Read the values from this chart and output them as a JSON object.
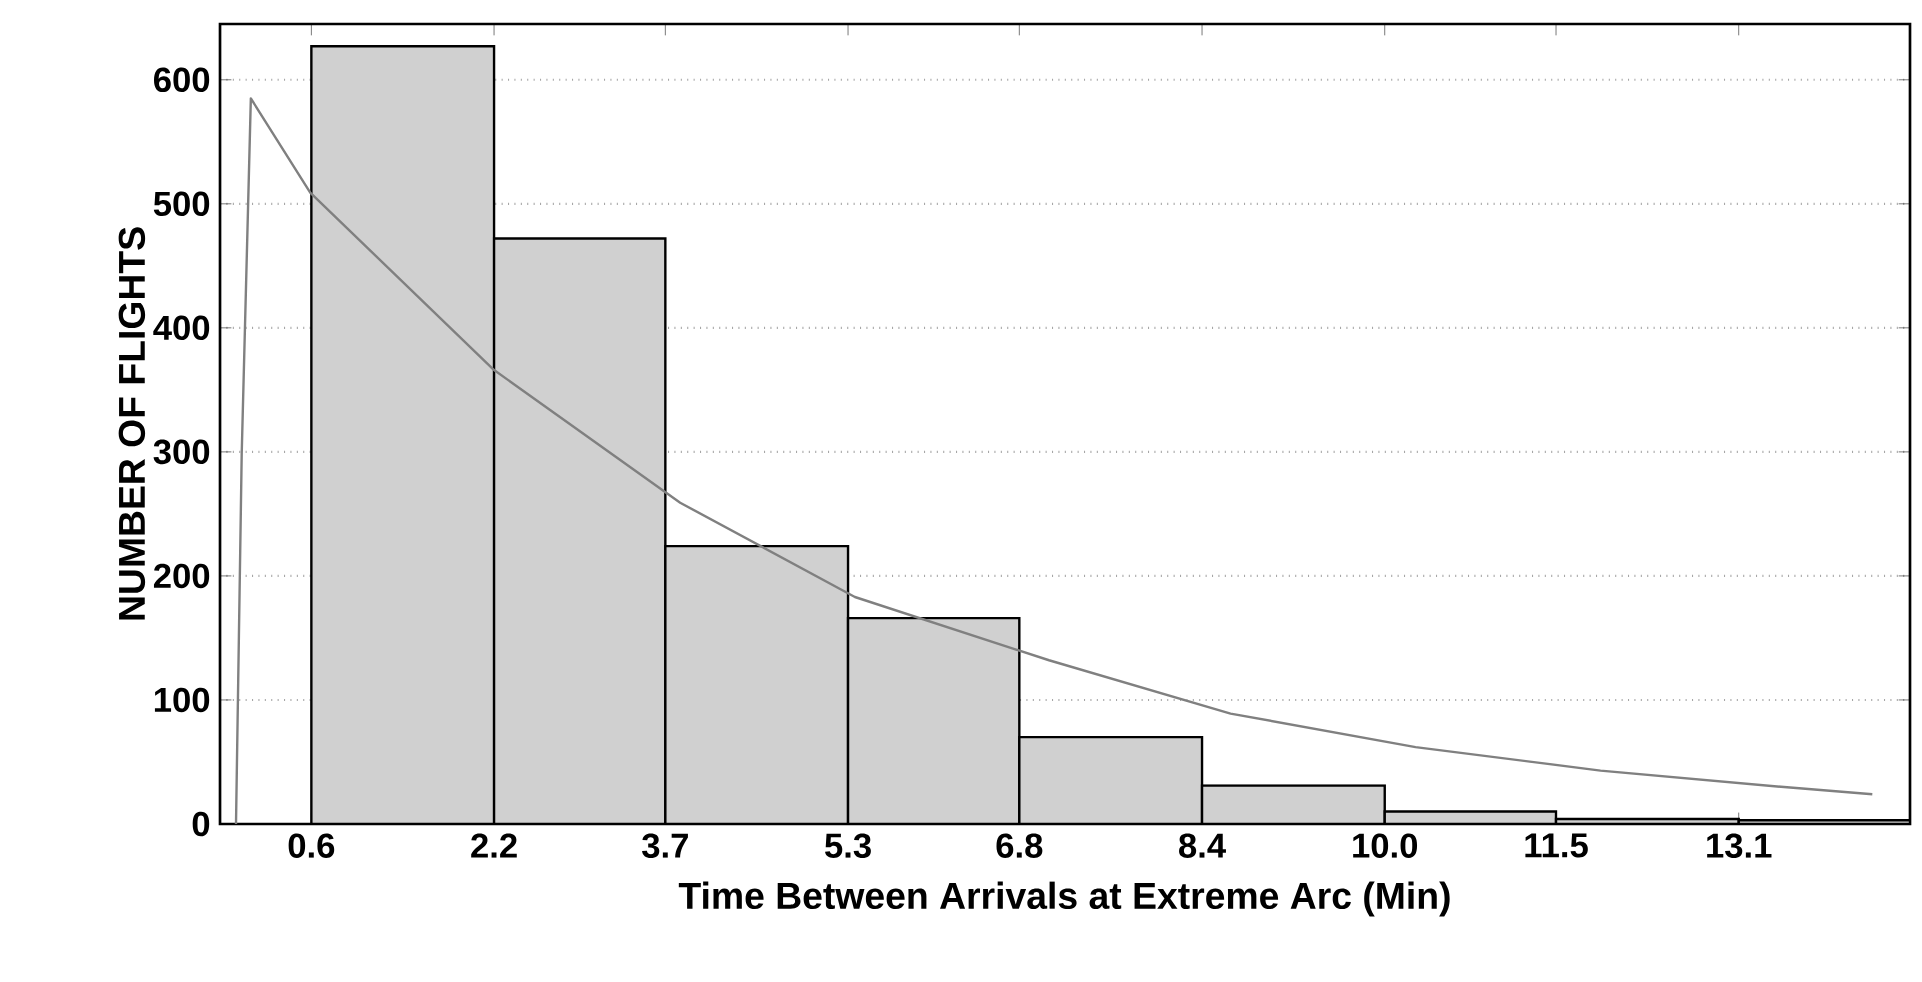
{
  "chart_data": {
    "type": "histogram",
    "xlabel": "Time Between Arrivals at Extreme Arc (Min)",
    "ylabel": "NUMBER OF FLIGHTS",
    "bins": [
      0.6,
      2.2,
      3.7,
      5.3,
      6.8,
      8.4,
      10.0,
      11.5,
      13.1,
      14.6
    ],
    "values": [
      627,
      472,
      224,
      166,
      70,
      31,
      10,
      4,
      3
    ],
    "color": "#d0d0d0",
    "series": [
      {
        "type": "line",
        "color": "#808080",
        "x": [
          -0.06,
          -0.01,
          0.07,
          0.59,
          2.2,
          3.83,
          5.36,
          7.06,
          8.65,
          10.27,
          11.89,
          13.47,
          14.27
        ],
        "values": [
          0,
          298,
          585,
          509,
          366,
          259,
          183,
          132,
          89,
          62,
          43,
          30,
          24
        ]
      }
    ],
    "xlim": [
      -0.2,
      14.6
    ],
    "ylim": [
      0,
      645
    ],
    "xticks": [
      0.6,
      2.2,
      3.7,
      5.3,
      6.8,
      8.4,
      {
        "value": 10,
        "label": "10.0"
      },
      11.5,
      13.1
    ],
    "yticks": [
      0,
      100,
      200,
      300,
      400,
      500,
      600
    ],
    "grid": "y",
    "marker": "none",
    "line_style": "solid"
  }
}
